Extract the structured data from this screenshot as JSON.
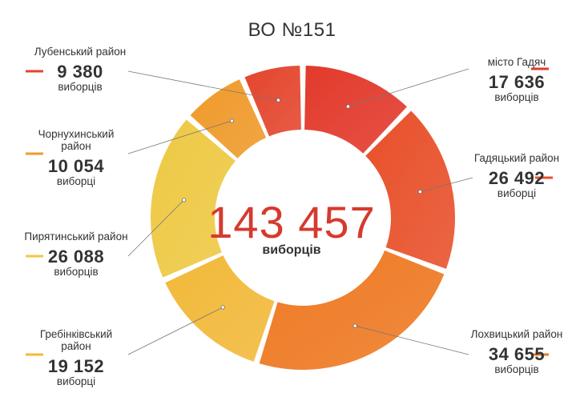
{
  "chart_data": {
    "type": "pie",
    "title": "ВО №151",
    "total": "143 457",
    "total_unit": "виборців",
    "unit_label_plural": "виборців",
    "unit_label_short": "виборці",
    "slices": [
      {
        "label": "місто Гадяч",
        "value": 17636,
        "value_text": "17 636",
        "unit": "виборців",
        "color": "#e23a2c"
      },
      {
        "label": "Гадяцький район",
        "value": 26492,
        "value_text": "26 492",
        "unit": "виборці",
        "color": "#e8502a"
      },
      {
        "label": "Лохвицький район",
        "value": 34655,
        "value_text": "34 655",
        "unit": "виборців",
        "color": "#ee7a24"
      },
      {
        "label": "Гребінківський район",
        "value": 19152,
        "value_text": "19 152",
        "unit": "виборці",
        "color": "#f2b93a"
      },
      {
        "label": "Пирятинський район",
        "value": 26088,
        "value_text": "26 088",
        "unit": "виборців",
        "color": "#eec944"
      },
      {
        "label": "Чорнухинський район",
        "value": 10054,
        "value_text": "10 054",
        "unit": "виборці",
        "color": "#ef9a2a"
      },
      {
        "label": "Лубенський район",
        "value": 9380,
        "value_text": "9 380",
        "unit": "виборців",
        "color": "#e4452d"
      }
    ]
  }
}
